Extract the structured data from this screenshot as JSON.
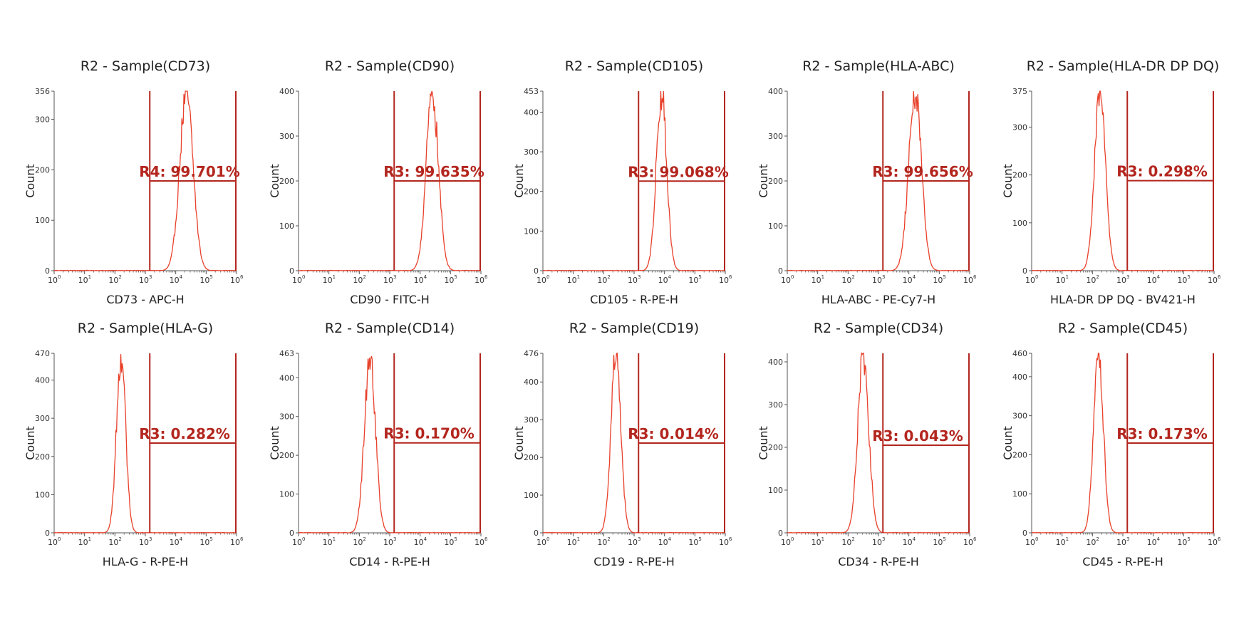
{
  "figure": {
    "colors": {
      "histogram": "#e8402a",
      "gate": "#b3261e",
      "axis": "#555555",
      "text": "#222222"
    },
    "ylabel": "Count",
    "x_tick_base": "10",
    "x_tick_exponents": [
      "0",
      "1",
      "2",
      "3",
      "4",
      "5",
      "6"
    ]
  },
  "chart_data": [
    {
      "type": "area",
      "title": "R2 - Sample(CD73)",
      "xlabel": "CD73 - APC-H",
      "ylabel": "Count",
      "xscale": "log",
      "xlim": [
        1,
        1000000
      ],
      "ylim": [
        0,
        356
      ],
      "yticks": [
        0,
        100,
        200,
        300,
        356
      ],
      "peak": {
        "center_log10": 4.35,
        "width": 0.22,
        "height": 350
      },
      "gate": {
        "label": "R4: 99.701%",
        "x_min": 1400,
        "x_max": 1000000,
        "y": 178
      }
    },
    {
      "type": "area",
      "title": "R2 - Sample(CD90)",
      "xlabel": "CD90 - FITC-H",
      "ylabel": "Count",
      "xscale": "log",
      "xlim": [
        1,
        1000000
      ],
      "ylim": [
        0,
        400
      ],
      "yticks": [
        0,
        100,
        200,
        300,
        400
      ],
      "peak": {
        "center_log10": 4.4,
        "width": 0.2,
        "height": 395
      },
      "gate": {
        "label": "R3: 99.635%",
        "x_min": 1400,
        "x_max": 1000000,
        "y": 200
      }
    },
    {
      "type": "area",
      "title": "R2 - Sample(CD105)",
      "xlabel": "CD105 - R-PE-H",
      "ylabel": "Count",
      "xscale": "log",
      "xlim": [
        1,
        1000000
      ],
      "ylim": [
        0,
        453
      ],
      "yticks": [
        0,
        100,
        200,
        300,
        400,
        453
      ],
      "peak": {
        "center_log10": 3.9,
        "width": 0.17,
        "height": 450
      },
      "gate": {
        "label": "R3: 99.068%",
        "x_min": 1400,
        "x_max": 1000000,
        "y": 226
      }
    },
    {
      "type": "area",
      "title": "R2 - Sample(HLA-ABC)",
      "xlabel": "HLA-ABC - PE-Cy7-H",
      "ylabel": "Count",
      "xscale": "log",
      "xlim": [
        1,
        1000000
      ],
      "ylim": [
        0,
        400
      ],
      "yticks": [
        0,
        100,
        200,
        300,
        400
      ],
      "peak": {
        "center_log10": 4.2,
        "width": 0.21,
        "height": 395
      },
      "gate": {
        "label": "R3: 99.656%",
        "x_min": 1400,
        "x_max": 1000000,
        "y": 200
      }
    },
    {
      "type": "area",
      "title": "R2 - Sample(HLA-DR DP DQ)",
      "xlabel": "HLA-DR DP DQ - BV421-H",
      "ylabel": "Count",
      "xscale": "log",
      "xlim": [
        1,
        1000000
      ],
      "ylim": [
        0,
        375
      ],
      "yticks": [
        0,
        100,
        200,
        300,
        375
      ],
      "peak": {
        "center_log10": 2.25,
        "width": 0.18,
        "height": 370
      },
      "gate": {
        "label": "R3: 0.298%",
        "x_min": 1400,
        "x_max": 1000000,
        "y": 188
      }
    },
    {
      "type": "area",
      "title": "R2 - Sample(HLA-G)",
      "xlabel": "HLA-G - R-PE-H",
      "ylabel": "Count",
      "xscale": "log",
      "xlim": [
        1,
        1000000
      ],
      "ylim": [
        0,
        470
      ],
      "yticks": [
        0,
        100,
        200,
        300,
        400,
        470
      ],
      "peak": {
        "center_log10": 2.2,
        "width": 0.15,
        "height": 465
      },
      "gate": {
        "label": "R3: 0.282%",
        "x_min": 1400,
        "x_max": 1000000,
        "y": 235
      }
    },
    {
      "type": "area",
      "title": "R2 - Sample(CD14)",
      "xlabel": "CD14 - R-PE-H",
      "ylabel": "Count",
      "xscale": "log",
      "xlim": [
        1,
        1000000
      ],
      "ylim": [
        0,
        463
      ],
      "yticks": [
        0,
        100,
        200,
        300,
        400,
        463
      ],
      "peak": {
        "center_log10": 2.35,
        "width": 0.18,
        "height": 458
      },
      "gate": {
        "label": "R3: 0.170%",
        "x_min": 1400,
        "x_max": 1000000,
        "y": 232
      }
    },
    {
      "type": "area",
      "title": "R2 - Sample(CD19)",
      "xlabel": "CD19 - R-PE-H",
      "ylabel": "Count",
      "xscale": "log",
      "xlim": [
        1,
        1000000
      ],
      "ylim": [
        0,
        476
      ],
      "yticks": [
        0,
        100,
        200,
        300,
        400,
        476
      ],
      "peak": {
        "center_log10": 2.4,
        "width": 0.16,
        "height": 472
      },
      "gate": {
        "label": "R3: 0.014%",
        "x_min": 1400,
        "x_max": 1000000,
        "y": 238
      }
    },
    {
      "type": "area",
      "title": "R2 - Sample(CD34)",
      "xlabel": "CD34 - R-PE-H",
      "ylabel": "Count",
      "xscale": "log",
      "xlim": [
        1,
        1000000
      ],
      "ylim": [
        0,
        420
      ],
      "yticks": [
        0,
        100,
        200,
        300,
        400
      ],
      "peak": {
        "center_log10": 2.5,
        "width": 0.18,
        "height": 415
      },
      "gate": {
        "label": "R3: 0.043%",
        "x_min": 1400,
        "x_max": 1000000,
        "y": 205
      }
    },
    {
      "type": "area",
      "title": "R2 - Sample(CD45)",
      "xlabel": "CD45 - R-PE-H",
      "ylabel": "Count",
      "xscale": "log",
      "xlim": [
        1,
        1000000
      ],
      "ylim": [
        0,
        460
      ],
      "yticks": [
        0,
        100,
        200,
        300,
        400,
        460
      ],
      "peak": {
        "center_log10": 2.2,
        "width": 0.16,
        "height": 456
      },
      "gate": {
        "label": "R3: 0.173%",
        "x_min": 1400,
        "x_max": 1000000,
        "y": 230
      }
    }
  ]
}
